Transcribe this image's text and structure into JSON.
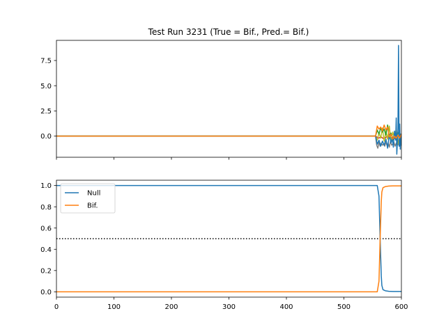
{
  "chart_data": [
    {
      "type": "line",
      "title": "Test Run 3231 (True = Bif., Pred.= Bif.)",
      "xlabel": "",
      "ylabel": "",
      "xlim": [
        0,
        600
      ],
      "ylim": [
        -2.1,
        9.5
      ],
      "xticks": [
        0,
        100,
        200,
        300,
        400,
        500,
        600
      ],
      "show_xtick_labels": false,
      "yticks": [
        0.0,
        2.5,
        5.0,
        7.5
      ],
      "ytick_labels": [
        "0.0",
        "2.5",
        "5.0",
        "7.5"
      ],
      "grid": false,
      "series": [
        {
          "color": "#7f7f7f",
          "x": [
            0,
            555,
            557,
            559,
            561,
            563,
            565,
            567,
            569,
            571,
            573,
            575,
            577,
            579,
            581,
            583,
            585,
            587,
            589,
            591,
            593,
            595,
            597,
            600
          ],
          "y": [
            0,
            0,
            -0.9,
            -1.2,
            -0.6,
            -1.0,
            -0.7,
            -0.9,
            -0.8,
            -1.0,
            -0.6,
            -0.9,
            -0.7,
            -1.1,
            -0.5,
            -0.9,
            -0.8,
            -0.6,
            -1.0,
            -0.7,
            -0.9,
            -0.8,
            -1.0,
            -0.6
          ]
        },
        {
          "color": "#d62728",
          "x": [
            0,
            555,
            560,
            565,
            570,
            575,
            580,
            585,
            590,
            595,
            600
          ],
          "y": [
            0,
            0,
            -0.2,
            -0.1,
            -0.3,
            0.0,
            -0.2,
            -0.1,
            -0.3,
            0.0,
            -0.1
          ]
        },
        {
          "color": "#bcbd22",
          "x": [
            0,
            555,
            558,
            561,
            564,
            567,
            570,
            573,
            576,
            579,
            582,
            585,
            588,
            591,
            594,
            597,
            600
          ],
          "y": [
            0,
            0,
            -0.4,
            0.3,
            -0.2,
            0.8,
            -0.5,
            0.5,
            -0.3,
            1.0,
            -0.6,
            0.4,
            -0.2,
            0.7,
            -0.8,
            0.3,
            0.0
          ]
        },
        {
          "color": "#2ca02c",
          "x": [
            0,
            555,
            558,
            561,
            564,
            567,
            570,
            573,
            576,
            579,
            582,
            585,
            588,
            591,
            594,
            597,
            600
          ],
          "y": [
            0,
            0,
            0.6,
            0.2,
            0.8,
            0.4,
            0.7,
            0.1,
            1.1,
            -0.2,
            0.3,
            -0.4,
            0.2,
            -0.1,
            0.4,
            0.0,
            0.2
          ]
        },
        {
          "color": "#1f77b4",
          "x": [
            0,
            555,
            558,
            561,
            564,
            567,
            570,
            573,
            576,
            579,
            582,
            584,
            586,
            588,
            590,
            591,
            592,
            593,
            594,
            595,
            596,
            597,
            598,
            599,
            600
          ],
          "y": [
            0,
            0,
            -0.8,
            -0.4,
            -1.0,
            -0.5,
            -0.9,
            -0.3,
            -1.2,
            0.2,
            -0.7,
            -0.2,
            -1.1,
            0.5,
            -0.4,
            1.8,
            -1.8,
            -0.6,
            0.8,
            9.0,
            -1.0,
            1.2,
            -1.3,
            0.2,
            -0.9
          ]
        },
        {
          "color": "#ff7f0e",
          "x": [
            0,
            555,
            558,
            561,
            564,
            567,
            570,
            573,
            576,
            579,
            582,
            585,
            588,
            591,
            594,
            597,
            600
          ],
          "y": [
            0,
            0,
            1.0,
            0.7,
            0.9,
            0.5,
            1.1,
            0.6,
            0.9,
            -0.1,
            0.2,
            -0.3,
            0.0,
            -0.2,
            0.1,
            -0.2,
            0.2
          ]
        }
      ]
    },
    {
      "type": "line",
      "title": "",
      "xlabel": "",
      "ylabel": "",
      "xlim": [
        0,
        600
      ],
      "ylim": [
        -0.05,
        1.05
      ],
      "xticks": [
        0,
        100,
        200,
        300,
        400,
        500,
        600
      ],
      "xtick_labels": [
        "0",
        "100",
        "200",
        "300",
        "400",
        "500",
        "600"
      ],
      "yticks": [
        0.0,
        0.2,
        0.4,
        0.6,
        0.8,
        1.0
      ],
      "ytick_labels": [
        "0.0",
        "0.2",
        "0.4",
        "0.6",
        "0.8",
        "1.0"
      ],
      "grid": false,
      "legend_position": "top-left",
      "threshold": 0.5,
      "series": [
        {
          "name": "Null",
          "color": "#1f77b4",
          "x": [
            0,
            558,
            561,
            563,
            565,
            566,
            568,
            572,
            578,
            585,
            600
          ],
          "y": [
            1.0,
            1.0,
            0.9,
            0.5,
            0.15,
            0.06,
            0.02,
            0.01,
            0.005,
            0.003,
            0.003
          ]
        },
        {
          "name": "Bif.",
          "color": "#ff7f0e",
          "x": [
            0,
            558,
            561,
            563,
            565,
            566,
            568,
            572,
            578,
            585,
            600
          ],
          "y": [
            0.0,
            0.0,
            0.1,
            0.5,
            0.85,
            0.94,
            0.98,
            0.99,
            0.995,
            0.997,
            0.997
          ]
        }
      ]
    }
  ]
}
